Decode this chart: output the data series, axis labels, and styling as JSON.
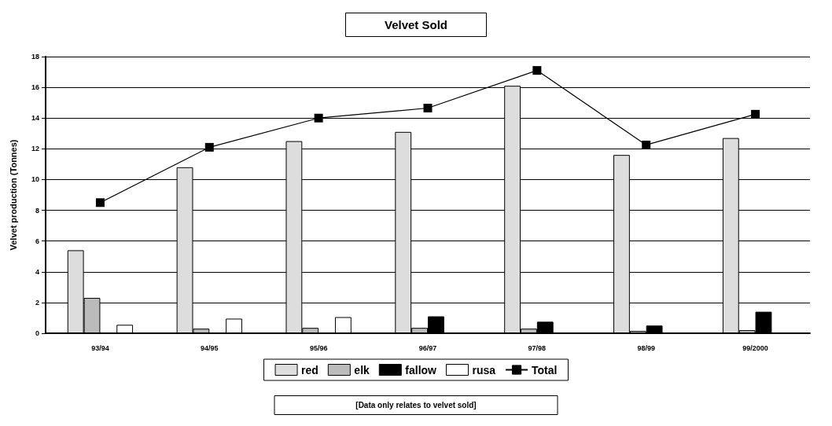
{
  "chart_data": {
    "type": "bar",
    "title": "Velvet Sold",
    "ylabel": "Velvet production (Tonnes)",
    "categories": [
      "93/94",
      "94/95",
      "95/96",
      "96/97",
      "97/98",
      "98/99",
      "99/2000"
    ],
    "series": [
      {
        "name": "red",
        "color": "#dddddd",
        "values": [
          5.4,
          10.8,
          12.5,
          13.1,
          16.1,
          11.6,
          12.7
        ]
      },
      {
        "name": "elk",
        "color": "#bbbbbb",
        "values": [
          2.3,
          0.3,
          0.35,
          0.35,
          0.3,
          0.15,
          0.2
        ]
      },
      {
        "name": "fallow",
        "color": "#000000",
        "values": [
          0.05,
          0,
          0,
          1.1,
          0.75,
          0.5,
          1.4
        ]
      },
      {
        "name": "rusa",
        "color": "#ffffff",
        "values": [
          0.55,
          0.95,
          1.05,
          null,
          null,
          null,
          null
        ]
      },
      {
        "name": "Total",
        "type": "line",
        "color": "#000000",
        "values": [
          8.5,
          12.1,
          14.0,
          14.65,
          17.1,
          12.25,
          14.25
        ]
      }
    ],
    "ylim": [
      0,
      18
    ],
    "yticks": [
      0,
      2,
      4,
      6,
      8,
      10,
      12,
      14,
      16,
      18
    ],
    "grid": "y",
    "legend": "bottom",
    "marker": "square",
    "annotations": [
      "[Data only relates to velvet sold]"
    ]
  }
}
